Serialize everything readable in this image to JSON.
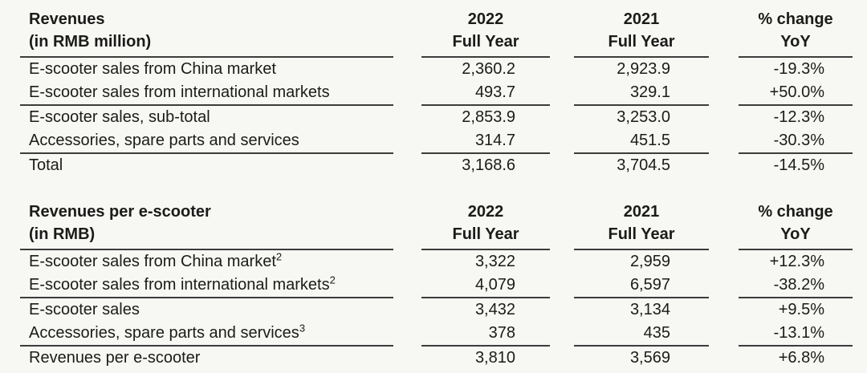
{
  "page": {
    "background": "#f7f7f4",
    "text_color": "#1b1b19",
    "rule_color": "#3c3c3c"
  },
  "tables": [
    {
      "title_line1": "Revenues",
      "title_line2": "(in RMB million)",
      "columns": [
        {
          "line1": "2022",
          "line2": "Full Year"
        },
        {
          "line1": "2021",
          "line2": "Full Year"
        },
        {
          "line1": "% change",
          "line2": "YoY"
        }
      ],
      "rows": [
        {
          "label": "E-scooter sales from China market",
          "sup": "",
          "v2022": "2,360.2",
          "v2021": "2,923.9",
          "yoy": "-19.3%"
        },
        {
          "label": "E-scooter sales from international markets",
          "sup": "",
          "v2022": "493.7",
          "v2021": "329.1",
          "yoy": "+50.0%"
        },
        {
          "label": "E-scooter sales, sub-total",
          "sup": "",
          "v2022": "2,853.9",
          "v2021": "3,253.0",
          "yoy": "-12.3%"
        },
        {
          "label": "Accessories, spare parts and services",
          "sup": "",
          "v2022": "314.7",
          "v2021": "451.5",
          "yoy": "-30.3%"
        },
        {
          "label": "Total",
          "sup": "",
          "v2022": "3,168.6",
          "v2021": "3,704.5",
          "yoy": "-14.5%"
        }
      ]
    },
    {
      "title_line1": "Revenues per e-scooter",
      "title_line2": "(in RMB)",
      "columns": [
        {
          "line1": "2022",
          "line2": "Full Year"
        },
        {
          "line1": "2021",
          "line2": "Full Year"
        },
        {
          "line1": "% change",
          "line2": "YoY"
        }
      ],
      "rows": [
        {
          "label": "E-scooter sales from China market",
          "sup": "2",
          "v2022": "3,322",
          "v2021": "2,959",
          "yoy": "+12.3%"
        },
        {
          "label": "E-scooter sales from international markets",
          "sup": "2",
          "v2022": "4,079",
          "v2021": "6,597",
          "yoy": "-38.2%"
        },
        {
          "label": "E-scooter sales",
          "sup": "",
          "v2022": "3,432",
          "v2021": "3,134",
          "yoy": "+9.5%"
        },
        {
          "label": "Accessories, spare parts and services",
          "sup": "3",
          "v2022": "378",
          "v2021": "435",
          "yoy": "-13.1%"
        },
        {
          "label": "Revenues per e-scooter",
          "sup": "",
          "v2022": "3,810",
          "v2021": "3,569",
          "yoy": "+6.8%"
        }
      ]
    }
  ]
}
